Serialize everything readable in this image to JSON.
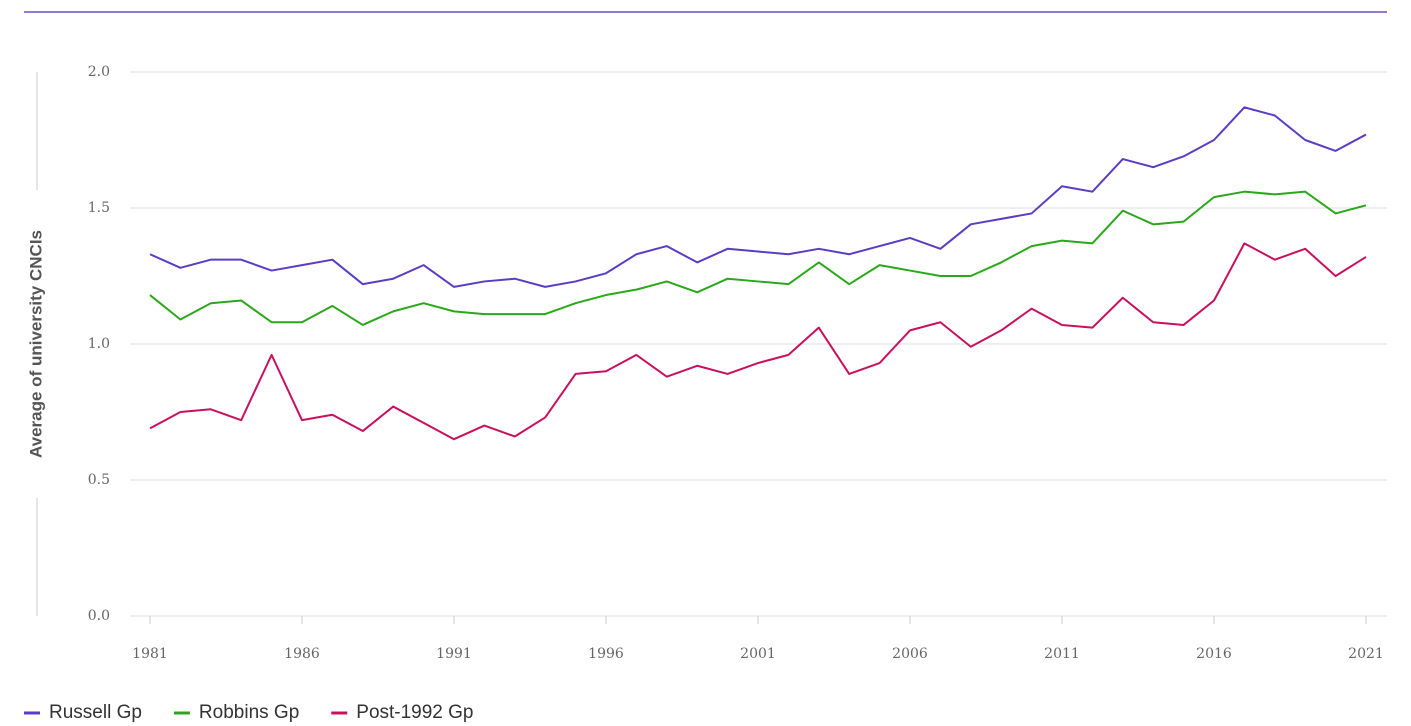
{
  "chart_data": {
    "type": "line",
    "y_label": "Average of university CNCIs",
    "x": [
      1981,
      1982,
      1983,
      1984,
      1985,
      1986,
      1987,
      1988,
      1989,
      1990,
      1991,
      1992,
      1993,
      1994,
      1995,
      1996,
      1997,
      1998,
      1999,
      2000,
      2001,
      2002,
      2003,
      2004,
      2005,
      2006,
      2007,
      2008,
      2009,
      2010,
      2011,
      2012,
      2013,
      2014,
      2015,
      2016,
      2017,
      2018,
      2019,
      2020,
      2021
    ],
    "series": [
      {
        "name": "Russell Gp",
        "color": "#5b3cc4",
        "values": [
          1.33,
          1.28,
          1.31,
          1.31,
          1.27,
          1.29,
          1.31,
          1.22,
          1.24,
          1.29,
          1.21,
          1.23,
          1.24,
          1.21,
          1.23,
          1.26,
          1.33,
          1.36,
          1.3,
          1.35,
          1.34,
          1.33,
          1.35,
          1.33,
          1.36,
          1.39,
          1.35,
          1.44,
          1.46,
          1.48,
          1.58,
          1.56,
          1.68,
          1.65,
          1.69,
          1.75,
          1.87,
          1.84,
          1.75,
          1.71,
          1.77
        ]
      },
      {
        "name": "Robbins Gp",
        "color": "#2aa81a",
        "values": [
          1.18,
          1.09,
          1.15,
          1.16,
          1.08,
          1.08,
          1.14,
          1.07,
          1.12,
          1.15,
          1.12,
          1.11,
          1.11,
          1.11,
          1.15,
          1.18,
          1.2,
          1.23,
          1.19,
          1.24,
          1.23,
          1.22,
          1.3,
          1.22,
          1.29,
          1.27,
          1.25,
          1.25,
          1.3,
          1.36,
          1.38,
          1.37,
          1.49,
          1.44,
          1.45,
          1.54,
          1.56,
          1.55,
          1.56,
          1.48,
          1.51
        ]
      },
      {
        "name": "Post-1992 Gp",
        "color": "#c8105f",
        "values": [
          0.69,
          0.75,
          0.76,
          0.72,
          0.96,
          0.72,
          0.74,
          0.68,
          0.77,
          0.71,
          0.65,
          0.7,
          0.66,
          0.73,
          0.89,
          0.9,
          0.96,
          0.88,
          0.92,
          0.89,
          0.93,
          0.96,
          1.06,
          0.89,
          0.93,
          1.05,
          1.08,
          0.99,
          1.05,
          1.13,
          1.07,
          1.06,
          1.17,
          1.08,
          1.07,
          1.16,
          1.37,
          1.31,
          1.35,
          1.25,
          1.32
        ]
      }
    ],
    "xlim": [
      1981,
      2021
    ],
    "xticks": [
      1981,
      1986,
      1991,
      1996,
      2001,
      2006,
      2011,
      2016,
      2021
    ],
    "ylim": [
      0,
      2
    ],
    "yticks": [
      {
        "value": 0,
        "label": "0.0"
      },
      {
        "value": 0.5,
        "label": "0.5"
      },
      {
        "value": 1,
        "label": "1.0"
      },
      {
        "value": 1.5,
        "label": "1.5"
      },
      {
        "value": 2,
        "label": "2.0"
      }
    ],
    "grid": true,
    "legend": "bottom-left"
  }
}
